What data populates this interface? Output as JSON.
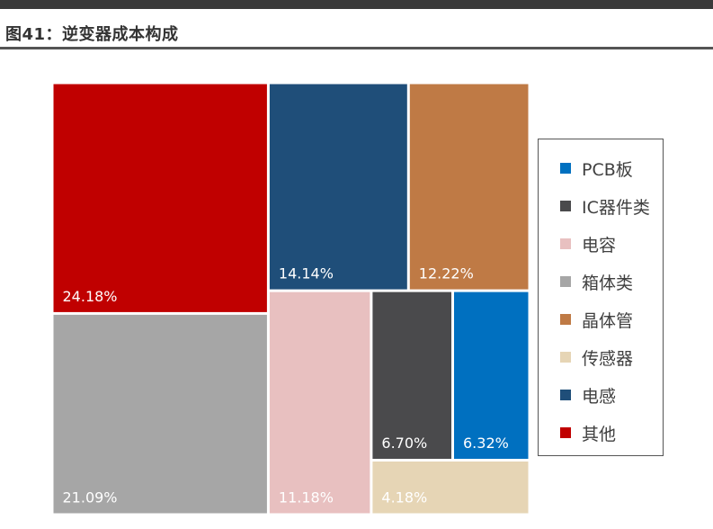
{
  "figure": {
    "title": "图41：逆变器成本构成"
  },
  "chart_data": {
    "type": "treemap",
    "items": [
      {
        "name": "其他",
        "value": 24.18,
        "label": "24.18%",
        "color": "#C00000"
      },
      {
        "name": "箱体类",
        "value": 21.09,
        "label": "21.09%",
        "color": "#A6A6A6"
      },
      {
        "name": "电感",
        "value": 14.14,
        "label": "14.14%",
        "color": "#1F4E79"
      },
      {
        "name": "晶体管",
        "value": 12.22,
        "label": "12.22%",
        "color": "#BF7A45"
      },
      {
        "name": "电容",
        "value": 11.18,
        "label": "11.18%",
        "color": "#E8C0C0"
      },
      {
        "name": "IC器件类",
        "value": 6.7,
        "label": "6.70%",
        "color": "#4A4A4C"
      },
      {
        "name": "PCB板",
        "value": 6.32,
        "label": "6.32%",
        "color": "#0070C0"
      },
      {
        "name": "传感器",
        "value": 4.18,
        "label": "4.18%",
        "color": "#E6D5B5"
      }
    ],
    "legend": {
      "placement": "right",
      "order": [
        "PCB板",
        "IC器件类",
        "电容",
        "箱体类",
        "晶体管",
        "传感器",
        "电感",
        "其他"
      ]
    }
  }
}
